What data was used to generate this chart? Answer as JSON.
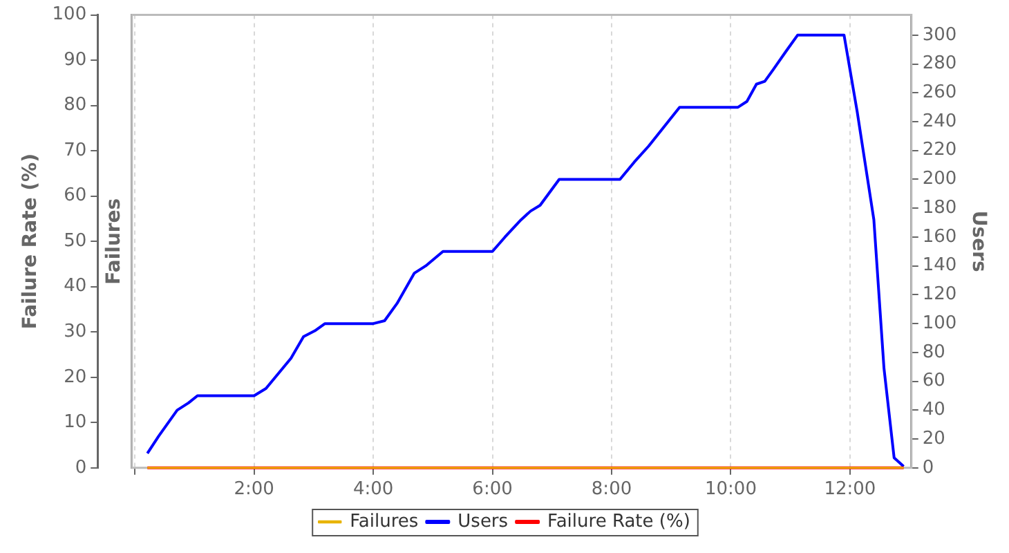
{
  "chart_data": {
    "type": "line",
    "ylabel": "Failure Rate (%)",
    "y3label": "Failures",
    "y2label": "Users",
    "xlim": [
      -0.05,
      13.03
    ],
    "xticks": [
      {
        "value": 0,
        "label": null
      },
      {
        "value": 2,
        "label": "2:00"
      },
      {
        "value": 4,
        "label": "4:00"
      },
      {
        "value": 6,
        "label": "6:00"
      },
      {
        "value": 8,
        "label": "8:00"
      },
      {
        "value": 10,
        "label": "10:00"
      },
      {
        "value": 12,
        "label": "12:00"
      }
    ],
    "ylim": [
      0,
      100
    ],
    "yticks": [
      0,
      10,
      20,
      30,
      40,
      50,
      60,
      70,
      80,
      90,
      100
    ],
    "y2lim": [
      0,
      314
    ],
    "y2ticks": [
      0,
      20,
      40,
      60,
      80,
      100,
      120,
      140,
      160,
      180,
      200,
      220,
      240,
      260,
      280,
      300
    ],
    "grid": "x",
    "legend": "bottom",
    "marker": "none",
    "line_style": "solid",
    "series": [
      {
        "name": "Failures",
        "color": "#e8b400",
        "axis": "y",
        "x": [
          0.21,
          12.9
        ],
        "values": [
          0,
          0
        ]
      },
      {
        "name": "Users",
        "color": "#0000ff",
        "axis": "y2",
        "x": [
          0.21,
          0.4,
          0.71,
          0.9,
          1.05,
          1.2,
          2.0,
          2.2,
          2.62,
          2.83,
          3.02,
          3.19,
          4.0,
          4.19,
          4.4,
          4.69,
          4.88,
          5.17,
          6.0,
          6.21,
          6.48,
          6.64,
          6.8,
          7.12,
          8.14,
          8.38,
          8.62,
          9.14,
          10.12,
          10.27,
          10.43,
          10.57,
          10.71,
          10.93,
          11.12,
          11.9,
          12.12,
          12.4,
          12.57,
          12.74,
          12.9
        ],
        "values": [
          10,
          22,
          40,
          45,
          50,
          50,
          50,
          55,
          76,
          91,
          95,
          100,
          100,
          102,
          114,
          135,
          140,
          150,
          150,
          160,
          172,
          178,
          182,
          200,
          200,
          212,
          223,
          250,
          250,
          254,
          266,
          268,
          276,
          289,
          300,
          300,
          247,
          172,
          69,
          7,
          1
        ]
      },
      {
        "name": "Failure Rate (%)",
        "color": "#ff0000",
        "axis": "y",
        "x": [
          0.21,
          12.9
        ],
        "values": [
          0,
          0
        ]
      }
    ]
  }
}
